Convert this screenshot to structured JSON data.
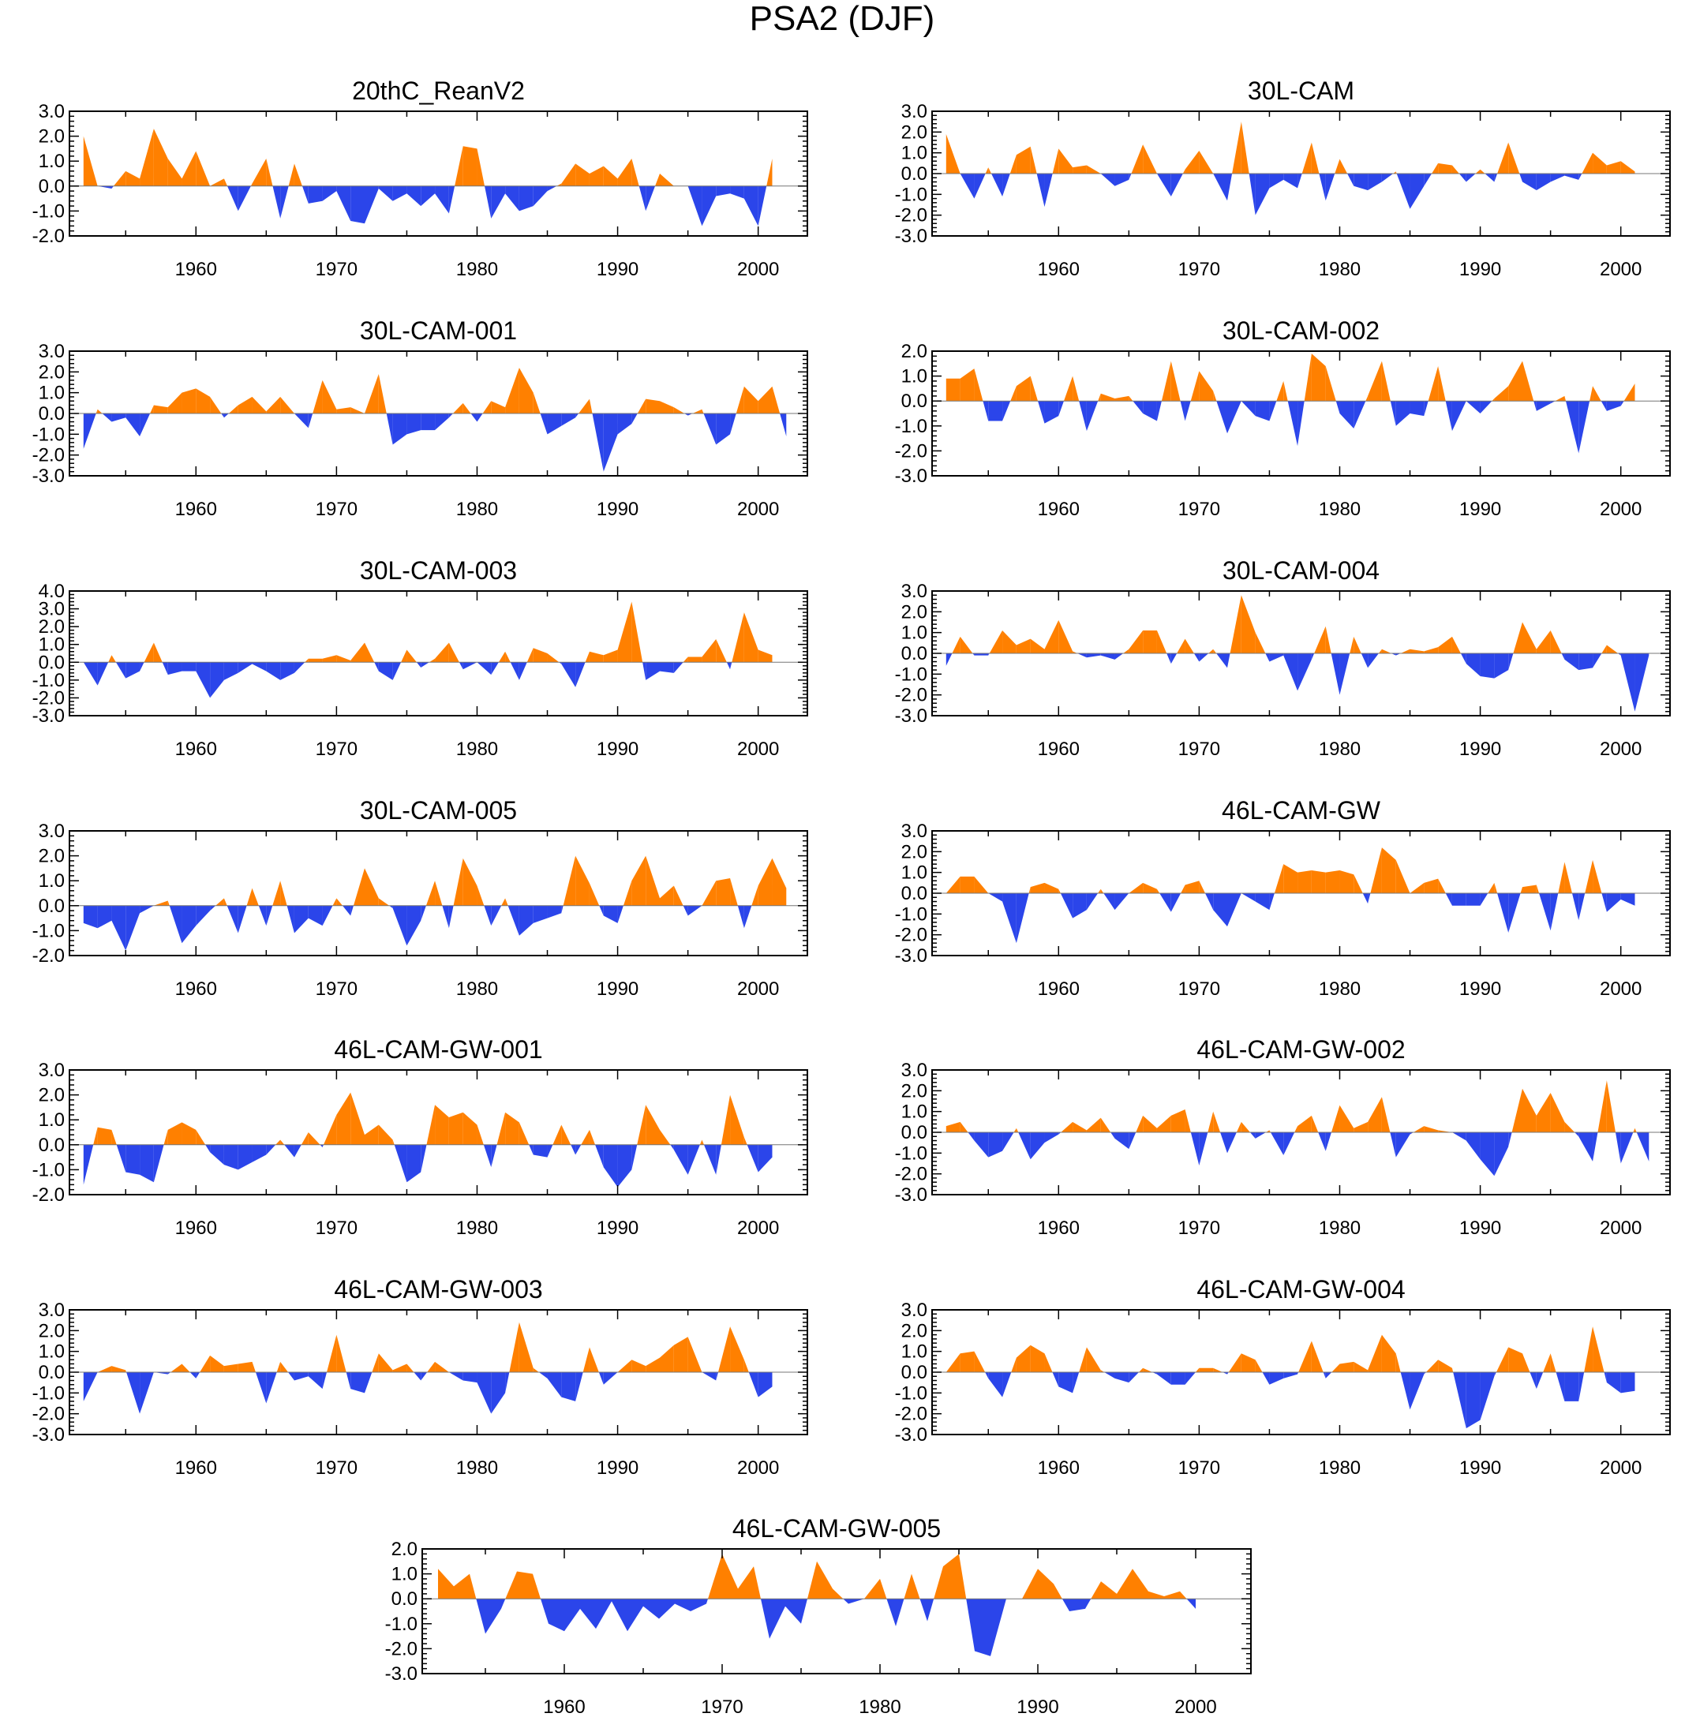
{
  "figure_title": "PSA2 (DJF)",
  "colors": {
    "positive": "#FF8000",
    "negative": "#2B45EA",
    "axis": "#000000"
  },
  "chart_data": [
    {
      "type": "area",
      "title": "20thC_ReanV2",
      "x_start": 1952,
      "ylim": [
        -2.0,
        3.0
      ],
      "ytick_labels": [
        "-2.0",
        "-1.0",
        "0.0",
        "1.0",
        "2.0",
        "3.0"
      ],
      "xtick_labels": [
        "1960",
        "1970",
        "1980",
        "1990",
        "2000"
      ],
      "values": [
        2.0,
        0.0,
        -0.1,
        0.6,
        0.3,
        2.3,
        1.1,
        0.3,
        1.4,
        0.0,
        0.3,
        -1.0,
        0.1,
        1.1,
        -1.3,
        0.9,
        -0.7,
        -0.6,
        -0.2,
        -1.4,
        -1.5,
        -0.1,
        -0.6,
        -0.3,
        -0.8,
        -0.3,
        -1.1,
        1.6,
        1.5,
        -1.3,
        -0.3,
        -1.0,
        -0.8,
        -0.2,
        0.1,
        0.9,
        0.5,
        0.8,
        0.3,
        1.1,
        -1.0,
        0.5,
        0.0,
        0.0,
        -1.6,
        -0.4,
        -0.3,
        -0.5,
        -1.6,
        1.1
      ]
    },
    {
      "type": "area",
      "title": "30L-CAM",
      "x_start": 1952,
      "ylim": [
        -3.0,
        3.0
      ],
      "ytick_labels": [
        "-3.0",
        "-2.0",
        "-1.0",
        "0.0",
        "1.0",
        "2.0",
        "3.0"
      ],
      "xtick_labels": [
        "1960",
        "1970",
        "1980",
        "1990",
        "2000"
      ],
      "values": [
        1.9,
        0.0,
        -1.2,
        0.3,
        -1.1,
        0.9,
        1.3,
        -1.6,
        1.2,
        0.3,
        0.4,
        0.0,
        -0.6,
        -0.3,
        1.4,
        0.0,
        -1.1,
        0.2,
        1.1,
        0.0,
        -1.3,
        2.5,
        -2.0,
        -0.7,
        -0.3,
        -0.7,
        1.5,
        -1.3,
        0.7,
        -0.6,
        -0.8,
        -0.4,
        0.1,
        -1.7,
        -0.6,
        0.5,
        0.4,
        -0.4,
        0.2,
        -0.4,
        1.5,
        -0.4,
        -0.8,
        -0.4,
        -0.1,
        -0.3,
        1.0,
        0.4,
        0.6,
        0.1
      ]
    },
    {
      "type": "area",
      "title": "30L-CAM-001",
      "x_start": 1952,
      "ylim": [
        -3.0,
        3.0
      ],
      "ytick_labels": [
        "-3.0",
        "-2.0",
        "-1.0",
        "0.0",
        "1.0",
        "2.0",
        "3.0"
      ],
      "xtick_labels": [
        "1960",
        "1970",
        "1980",
        "1990",
        "2000"
      ],
      "values": [
        -1.7,
        0.2,
        -0.4,
        -0.2,
        -1.1,
        0.4,
        0.3,
        1.0,
        1.2,
        0.8,
        -0.2,
        0.4,
        0.8,
        0.1,
        0.8,
        0.0,
        -0.7,
        1.6,
        0.2,
        0.3,
        0.0,
        1.9,
        -1.5,
        -1.0,
        -0.8,
        -0.8,
        -0.2,
        0.5,
        -0.4,
        0.6,
        0.3,
        2.2,
        1.0,
        -1.0,
        -0.6,
        -0.2,
        0.7,
        -2.8,
        -1.0,
        -0.5,
        0.7,
        0.6,
        0.3,
        -0.1,
        0.2,
        -1.5,
        -1.0,
        1.3,
        0.6,
        1.3,
        -1.1
      ]
    },
    {
      "type": "area",
      "title": "30L-CAM-002",
      "x_start": 1952,
      "ylim": [
        -3.0,
        2.0
      ],
      "ytick_labels": [
        "-3.0",
        "-2.0",
        "-1.0",
        "0.0",
        "1.0",
        "2.0"
      ],
      "xtick_labels": [
        "1960",
        "1970",
        "1980",
        "1990",
        "2000"
      ],
      "values": [
        0.9,
        0.9,
        1.3,
        -0.8,
        -0.8,
        0.6,
        1.0,
        -0.9,
        -0.6,
        1.0,
        -1.2,
        0.3,
        0.1,
        0.2,
        -0.5,
        -0.8,
        1.6,
        -0.8,
        1.2,
        0.4,
        -1.3,
        0.0,
        -0.6,
        -0.8,
        0.8,
        -1.8,
        1.9,
        1.4,
        -0.5,
        -1.1,
        0.2,
        1.6,
        -1.0,
        -0.5,
        -0.6,
        1.4,
        -1.2,
        0.0,
        -0.5,
        0.1,
        0.6,
        1.6,
        -0.4,
        -0.1,
        0.2,
        -2.1,
        0.6,
        -0.4,
        -0.2,
        0.7
      ]
    },
    {
      "type": "area",
      "title": "30L-CAM-003",
      "x_start": 1952,
      "ylim": [
        -3.0,
        4.0
      ],
      "ytick_labels": [
        "-3.0",
        "-2.0",
        "-1.0",
        "0.0",
        "1.0",
        "2.0",
        "3.0",
        "4.0"
      ],
      "xtick_labels": [
        "1960",
        "1970",
        "1980",
        "1990",
        "2000"
      ],
      "values": [
        0.0,
        -1.3,
        0.4,
        -0.9,
        -0.5,
        1.1,
        -0.7,
        -0.5,
        -0.5,
        -2.0,
        -1.0,
        -0.6,
        -0.1,
        -0.5,
        -1.0,
        -0.6,
        0.2,
        0.2,
        0.4,
        0.1,
        1.1,
        -0.5,
        -1.0,
        0.7,
        -0.3,
        0.2,
        1.1,
        -0.4,
        0.0,
        -0.7,
        0.6,
        -1.0,
        0.8,
        0.5,
        -0.1,
        -1.4,
        0.6,
        0.4,
        0.7,
        3.4,
        -1.0,
        -0.5,
        -0.6,
        0.3,
        0.3,
        1.3,
        -0.4,
        2.8,
        0.7,
        0.4
      ]
    },
    {
      "type": "area",
      "title": "30L-CAM-004",
      "x_start": 1952,
      "ylim": [
        -3.0,
        3.0
      ],
      "ytick_labels": [
        "-3.0",
        "-2.0",
        "-1.0",
        "0.0",
        "1.0",
        "2.0",
        "3.0"
      ],
      "xtick_labels": [
        "1960",
        "1970",
        "1980",
        "1990",
        "2000"
      ],
      "values": [
        -0.6,
        0.8,
        -0.1,
        -0.1,
        1.1,
        0.4,
        0.7,
        0.2,
        1.6,
        0.1,
        -0.2,
        -0.1,
        -0.3,
        0.2,
        1.1,
        1.1,
        -0.5,
        0.7,
        -0.4,
        0.2,
        -0.7,
        2.8,
        1.0,
        -0.4,
        -0.1,
        -1.8,
        -0.3,
        1.3,
        -2.0,
        0.8,
        -0.7,
        0.2,
        -0.1,
        0.2,
        0.1,
        0.3,
        0.8,
        -0.5,
        -1.1,
        -1.2,
        -0.8,
        1.5,
        0.2,
        1.1,
        -0.3,
        -0.8,
        -0.7,
        0.4,
        -0.1,
        -2.8,
        -0.1
      ]
    },
    {
      "type": "area",
      "title": "30L-CAM-005",
      "x_start": 1952,
      "ylim": [
        -2.0,
        3.0
      ],
      "ytick_labels": [
        "-2.0",
        "-1.0",
        "0.0",
        "1.0",
        "2.0",
        "3.0"
      ],
      "xtick_labels": [
        "1960",
        "1970",
        "1980",
        "1990",
        "2000"
      ],
      "values": [
        -0.7,
        -0.9,
        -0.6,
        -1.8,
        -0.3,
        0.0,
        0.2,
        -1.5,
        -0.8,
        -0.2,
        0.3,
        -1.1,
        0.7,
        -0.8,
        1.0,
        -1.1,
        -0.5,
        -0.8,
        0.3,
        -0.4,
        1.5,
        0.3,
        -0.1,
        -1.6,
        -0.6,
        1.0,
        -0.9,
        1.9,
        0.8,
        -0.8,
        0.3,
        -1.2,
        -0.7,
        -0.5,
        -0.3,
        2.0,
        0.9,
        -0.4,
        -0.7,
        1.0,
        2.0,
        0.3,
        0.8,
        -0.4,
        0.0,
        1.0,
        1.1,
        -0.9,
        0.8,
        1.9,
        0.7
      ]
    },
    {
      "type": "area",
      "title": "46L-CAM-GW",
      "x_start": 1952,
      "ylim": [
        -3.0,
        3.0
      ],
      "ytick_labels": [
        "-3.0",
        "-2.0",
        "-1.0",
        "0.0",
        "1.0",
        "2.0",
        "3.0"
      ],
      "xtick_labels": [
        "1960",
        "1970",
        "1980",
        "1990",
        "2000"
      ],
      "values": [
        0.0,
        0.8,
        0.8,
        0.0,
        -0.4,
        -2.4,
        0.3,
        0.5,
        0.2,
        -1.2,
        -0.8,
        0.2,
        -0.8,
        0.0,
        0.5,
        0.2,
        -0.9,
        0.4,
        0.6,
        -0.8,
        -1.6,
        0.0,
        -0.4,
        -0.8,
        1.4,
        1.0,
        1.1,
        1.0,
        1.1,
        0.9,
        -0.5,
        2.2,
        1.6,
        0.0,
        0.5,
        0.7,
        -0.6,
        -0.6,
        -0.6,
        0.5,
        -1.9,
        0.3,
        0.4,
        -1.8,
        1.5,
        -1.3,
        1.6,
        -0.9,
        -0.3,
        -0.6
      ]
    },
    {
      "type": "area",
      "title": "46L-CAM-GW-001",
      "x_start": 1952,
      "ylim": [
        -2.0,
        3.0
      ],
      "ytick_labels": [
        "-2.0",
        "-1.0",
        "0.0",
        "1.0",
        "2.0",
        "3.0"
      ],
      "xtick_labels": [
        "1960",
        "1970",
        "1980",
        "1990",
        "2000"
      ],
      "values": [
        -1.6,
        0.7,
        0.6,
        -1.1,
        -1.2,
        -1.5,
        0.6,
        0.9,
        0.6,
        -0.3,
        -0.8,
        -1.0,
        -0.7,
        -0.4,
        0.2,
        -0.5,
        0.5,
        -0.1,
        1.2,
        2.1,
        0.4,
        0.8,
        0.2,
        -1.5,
        -1.1,
        1.6,
        1.1,
        1.3,
        0.8,
        -0.9,
        1.3,
        0.9,
        -0.4,
        -0.5,
        0.8,
        -0.4,
        0.6,
        -0.9,
        -1.7,
        -1.0,
        1.6,
        0.6,
        -0.2,
        -1.2,
        0.2,
        -1.2,
        2.0,
        0.3,
        -1.1,
        -0.5
      ]
    },
    {
      "type": "area",
      "title": "46L-CAM-GW-002",
      "x_start": 1952,
      "ylim": [
        -3.0,
        3.0
      ],
      "ytick_labels": [
        "-3.0",
        "-2.0",
        "-1.0",
        "0.0",
        "1.0",
        "2.0",
        "3.0"
      ],
      "xtick_labels": [
        "1960",
        "1970",
        "1980",
        "1990",
        "2000"
      ],
      "values": [
        0.3,
        0.5,
        -0.4,
        -1.2,
        -0.9,
        0.2,
        -1.3,
        -0.5,
        -0.1,
        0.5,
        0.1,
        0.7,
        -0.3,
        -0.8,
        0.8,
        0.2,
        0.8,
        1.1,
        -1.6,
        1.0,
        -1.0,
        0.5,
        -0.3,
        0.1,
        -1.1,
        0.3,
        0.8,
        -0.9,
        1.3,
        0.2,
        0.5,
        1.7,
        -1.2,
        -0.1,
        0.3,
        0.1,
        0.0,
        -0.4,
        -1.3,
        -2.1,
        -0.7,
        2.1,
        0.8,
        1.9,
        0.5,
        -0.2,
        -1.4,
        2.5,
        -1.5,
        0.2,
        -1.4
      ]
    },
    {
      "type": "area",
      "title": "46L-CAM-GW-003",
      "x_start": 1952,
      "ylim": [
        -3.0,
        3.0
      ],
      "ytick_labels": [
        "-3.0",
        "-2.0",
        "-1.0",
        "0.0",
        "1.0",
        "2.0",
        "3.0"
      ],
      "xtick_labels": [
        "1960",
        "1970",
        "1980",
        "1990",
        "2000"
      ],
      "values": [
        -1.4,
        0.0,
        0.3,
        0.1,
        -2.0,
        0.0,
        -0.1,
        0.4,
        -0.3,
        0.8,
        0.3,
        0.4,
        0.5,
        -1.5,
        0.5,
        -0.4,
        -0.2,
        -0.8,
        1.8,
        -0.8,
        -1.0,
        0.9,
        0.1,
        0.4,
        -0.4,
        0.5,
        0.0,
        -0.4,
        -0.5,
        -2.0,
        -1.0,
        2.4,
        0.2,
        -0.3,
        -1.2,
        -1.4,
        1.2,
        -0.6,
        0.0,
        0.6,
        0.3,
        0.7,
        1.3,
        1.7,
        0.0,
        -0.4,
        2.2,
        0.6,
        -1.2,
        -0.7
      ]
    },
    {
      "type": "area",
      "title": "46L-CAM-GW-004",
      "x_start": 1952,
      "ylim": [
        -3.0,
        3.0
      ],
      "ytick_labels": [
        "-3.0",
        "-2.0",
        "-1.0",
        "0.0",
        "1.0",
        "2.0",
        "3.0"
      ],
      "xtick_labels": [
        "1960",
        "1970",
        "1980",
        "1990",
        "2000"
      ],
      "values": [
        0.0,
        0.9,
        1.0,
        -0.3,
        -1.2,
        0.7,
        1.3,
        0.9,
        -0.7,
        -1.0,
        1.2,
        0.1,
        -0.3,
        -0.5,
        0.2,
        -0.1,
        -0.6,
        -0.6,
        0.2,
        0.2,
        -0.1,
        0.9,
        0.6,
        -0.6,
        -0.3,
        -0.1,
        1.5,
        -0.3,
        0.4,
        0.5,
        0.1,
        1.8,
        0.9,
        -1.8,
        -0.1,
        0.6,
        0.2,
        -2.7,
        -2.3,
        -0.2,
        1.2,
        0.9,
        -0.8,
        0.9,
        -1.4,
        -1.4,
        2.2,
        -0.5,
        -1.0,
        -0.9
      ]
    },
    {
      "type": "area",
      "title": "46L-CAM-GW-005",
      "x_start": 1952,
      "ylim": [
        -3.0,
        2.0
      ],
      "ytick_labels": [
        "-3.0",
        "-2.0",
        "-1.0",
        "0.0",
        "1.0",
        "2.0"
      ],
      "xtick_labels": [
        "1960",
        "1970",
        "1980",
        "1990",
        "2000"
      ],
      "values": [
        1.2,
        0.5,
        1.0,
        -1.4,
        -0.4,
        1.1,
        1.0,
        -1.0,
        -1.3,
        -0.4,
        -1.2,
        -0.1,
        -1.3,
        -0.3,
        -0.8,
        -0.2,
        -0.5,
        -0.2,
        1.8,
        0.4,
        1.3,
        -1.6,
        -0.3,
        -1.0,
        1.5,
        0.4,
        -0.2,
        0.0,
        0.8,
        -1.1,
        1.0,
        -0.9,
        1.3,
        1.8,
        -2.1,
        -2.3,
        0.0,
        0.0,
        1.2,
        0.6,
        -0.5,
        -0.4,
        0.7,
        0.2,
        1.2,
        0.3,
        0.1,
        0.3,
        -0.4
      ]
    }
  ]
}
